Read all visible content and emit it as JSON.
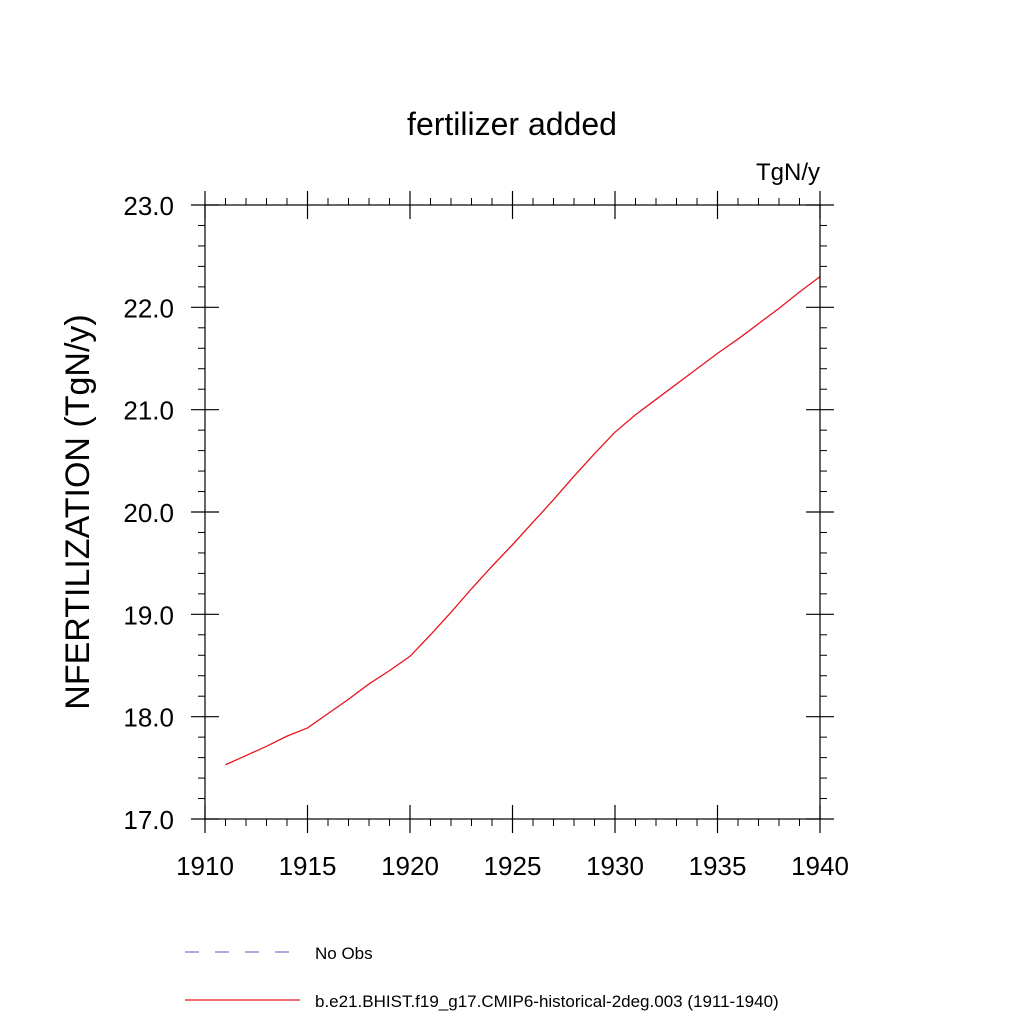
{
  "chart_data": {
    "type": "line",
    "title": "fertilizer added",
    "units_label": "TgN/y",
    "ylabel": "NFERTILIZATION  (TgN/y)",
    "xlabel": "",
    "xlim": [
      1910,
      1940
    ],
    "ylim": [
      17.0,
      23.0
    ],
    "x_ticks": [
      1910,
      1915,
      1920,
      1925,
      1930,
      1935,
      1940
    ],
    "x_tick_labels": [
      "1910",
      "1915",
      "1920",
      "1925",
      "1930",
      "1935",
      "1940"
    ],
    "y_ticks": [
      17.0,
      18.0,
      19.0,
      20.0,
      21.0,
      22.0,
      23.0
    ],
    "y_tick_labels": [
      "17.0",
      "18.0",
      "19.0",
      "20.0",
      "21.0",
      "22.0",
      "23.0"
    ],
    "grid": false,
    "legend_position": "bottom",
    "series": [
      {
        "name": "No Obs",
        "color": "#7b7bc8",
        "style": "dashed",
        "x": [],
        "y": []
      },
      {
        "name": "b.e21.BHIST.f19_g17.CMIP6-historical-2deg.003 (1911-1940)",
        "color": "#e8141c",
        "style": "solid",
        "x": [
          1911,
          1912,
          1913,
          1914,
          1915,
          1916,
          1917,
          1918,
          1919,
          1920,
          1921,
          1922,
          1923,
          1924,
          1925,
          1926,
          1927,
          1928,
          1929,
          1930,
          1931,
          1932,
          1933,
          1934,
          1935,
          1936,
          1937,
          1938,
          1939,
          1940
        ],
        "y": [
          17.53,
          17.62,
          17.71,
          17.81,
          17.89,
          18.03,
          18.17,
          18.32,
          18.45,
          18.59,
          18.8,
          19.02,
          19.25,
          19.47,
          19.68,
          19.9,
          20.12,
          20.35,
          20.57,
          20.78,
          20.95,
          21.1,
          21.25,
          21.4,
          21.55,
          21.69,
          21.84,
          21.99,
          22.15,
          22.3
        ]
      }
    ]
  }
}
